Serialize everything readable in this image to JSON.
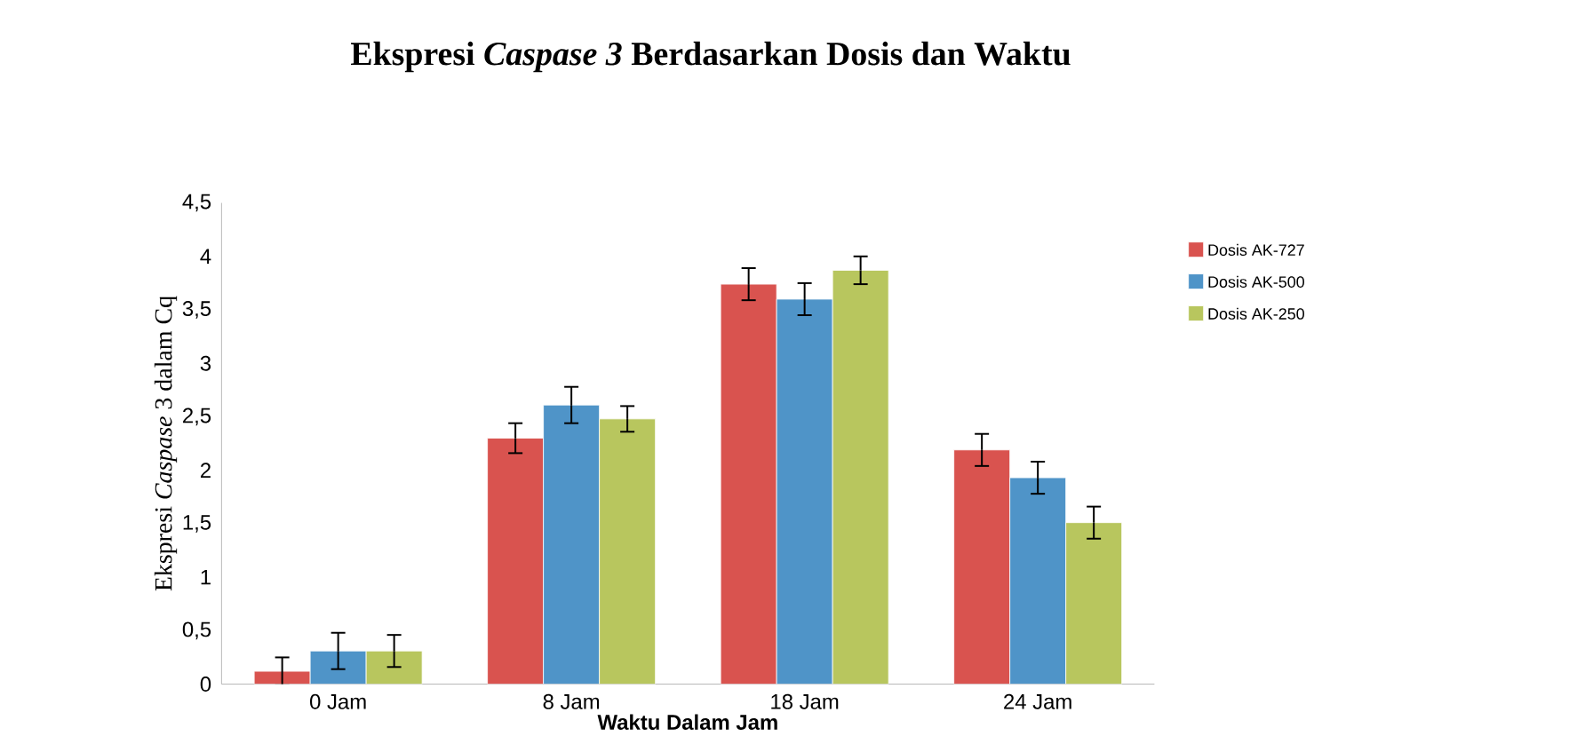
{
  "chart_data": {
    "type": "bar",
    "title": "Ekspresi  *Caspase 3* Berdasarkan Dosis dan Waktu",
    "xlabel": "Waktu Dalam Jam",
    "ylabel": "Ekspresi *Caspase* 3 dalam Cq",
    "categories": [
      "0 Jam",
      "8 Jam",
      "18 Jam",
      "24 Jam"
    ],
    "series": [
      {
        "name": "Dosis AK-727",
        "color": "#d9534f",
        "values": [
          0.12,
          2.3,
          3.74,
          2.19
        ],
        "errors": [
          0.13,
          0.14,
          0.15,
          0.15
        ]
      },
      {
        "name": "Dosis AK-500",
        "color": "#4f94c8",
        "values": [
          0.31,
          2.61,
          3.6,
          1.93
        ],
        "errors": [
          0.17,
          0.17,
          0.15,
          0.15
        ]
      },
      {
        "name": "Dosis AK-250",
        "color": "#b8c65e",
        "values": [
          0.31,
          2.48,
          3.87,
          1.51
        ],
        "errors": [
          0.15,
          0.12,
          0.13,
          0.15
        ]
      }
    ],
    "ylim": [
      0,
      4.5
    ],
    "yticks": [
      0,
      {
        "value": 0.5,
        "label": "0,5"
      },
      1,
      {
        "value": 1.5,
        "label": "1,5"
      },
      2,
      {
        "value": 2.5,
        "label": "2,5"
      },
      3,
      {
        "value": 3.5,
        "label": "3,5"
      },
      4,
      {
        "value": 4.5,
        "label": "4,5"
      }
    ],
    "legend": "right"
  }
}
